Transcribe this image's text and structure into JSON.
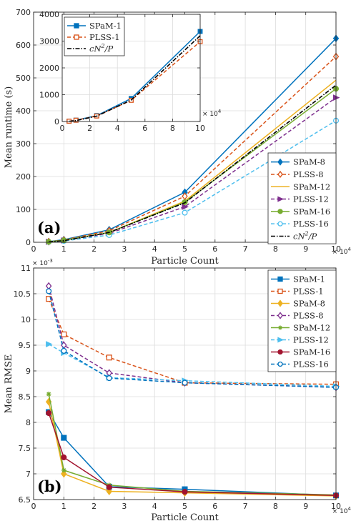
{
  "colors": {
    "blue": "#0072BD",
    "orange": "#D95319",
    "yellow": "#EDB120",
    "purple": "#7E2F8E",
    "green": "#77AC30",
    "cyan": "#4DBEEE",
    "darkred": "#A2142F",
    "black": "#000000",
    "grid": "#dcdcdc"
  },
  "chart_data": [
    {
      "id": "a",
      "type": "line",
      "panel_label": "(a)",
      "xlabel": "Particle Count",
      "ylabel": "Mean runtime (s)",
      "x_exponent": "× 10^4",
      "xlim": [
        0,
        10
      ],
      "ylim": [
        0,
        700
      ],
      "xticks": [
        0,
        1,
        2,
        3,
        4,
        5,
        6,
        7,
        8,
        9,
        10
      ],
      "yticks": [
        0,
        100,
        200,
        300,
        400,
        500,
        600,
        700
      ],
      "grid": true,
      "legend_position": "bottom-right",
      "series": [
        {
          "name": "SPaM-8",
          "color": "blue",
          "dash": "solid",
          "marker": "diamond",
          "x": [
            0.5,
            1,
            2.5,
            5,
            10
          ],
          "y": [
            2,
            8,
            38,
            152,
            620
          ]
        },
        {
          "name": "PLSS-8",
          "color": "orange",
          "dash": "dashed",
          "marker": "diamond-open",
          "x": [
            0.5,
            1,
            2.5,
            5,
            10
          ],
          "y": [
            2,
            7,
            35,
            140,
            565
          ]
        },
        {
          "name": "SPaM-12",
          "color": "yellow",
          "dash": "solid",
          "marker": "none",
          "x": [
            0.5,
            1,
            2.5,
            5,
            10
          ],
          "y": [
            1.5,
            6,
            30,
            125,
            493
          ]
        },
        {
          "name": "PLSS-12",
          "color": "purple",
          "dash": "dashed",
          "marker": "triangle-right",
          "x": [
            0.5,
            1,
            2.5,
            5,
            10
          ],
          "y": [
            1.5,
            5.5,
            27,
            108,
            440
          ]
        },
        {
          "name": "PLSS-16",
          "color": "cyan",
          "dash": "dashed",
          "marker": "circle-open",
          "x": [
            0.5,
            1,
            2.5,
            5,
            10
          ],
          "y": [
            1,
            4,
            22,
            90,
            370
          ]
        },
        {
          "name": "SPaM-16",
          "color": "green",
          "dash": "solid",
          "marker": "circle",
          "x": [
            0.5,
            1,
            2.5,
            5,
            10
          ],
          "y": [
            1.5,
            6,
            30,
            122,
            467
          ]
        },
        {
          "name": "cN^2/P",
          "color": "black",
          "dash": "dashdot",
          "marker": "none",
          "x": [
            0.5,
            1,
            2.5,
            5,
            10
          ],
          "y": [
            1.2,
            4.8,
            30,
            120,
            478
          ]
        }
      ],
      "legend_order": [
        "SPaM-8",
        "PLSS-8",
        "SPaM-12",
        "PLSS-12",
        "SPaM-16",
        "PLSS-16",
        "cN^2/P"
      ],
      "inset": {
        "xlim": [
          0,
          10
        ],
        "ylim": [
          0,
          4000
        ],
        "xticks": [
          0,
          2,
          4,
          6,
          8,
          10
        ],
        "yticks": [
          0,
          1000,
          2000,
          3000,
          4000
        ],
        "x_exponent": "× 10^4",
        "grid": true,
        "legend_position": "top-left",
        "series": [
          {
            "name": "SPaM-1",
            "color": "blue",
            "dash": "solid",
            "marker": "square",
            "x": [
              0.5,
              1,
              2.5,
              5,
              10
            ],
            "y": [
              12,
              50,
              220,
              860,
              3360
            ]
          },
          {
            "name": "PLSS-1",
            "color": "orange",
            "dash": "dashed",
            "marker": "square-open",
            "x": [
              0.5,
              1,
              2.5,
              5,
              10
            ],
            "y": [
              12,
              48,
              205,
              790,
              2980
            ]
          },
          {
            "name": "cN^2/P",
            "color": "black",
            "dash": "dashdot",
            "marker": "none",
            "x": [
              0.5,
              1,
              2.5,
              5,
              10
            ],
            "y": [
              8,
              32,
              200,
              800,
              3200
            ]
          }
        ]
      }
    },
    {
      "id": "b",
      "type": "line",
      "panel_label": "(b)",
      "xlabel": "Particle Count",
      "ylabel": "Mean RMSE",
      "x_exponent": "× 10^4",
      "y_exponent": "× 10^-3",
      "xlim": [
        0,
        10
      ],
      "ylim": [
        6.5,
        11
      ],
      "xticks": [
        0,
        1,
        2,
        3,
        4,
        5,
        6,
        7,
        8,
        9,
        10
      ],
      "yticks": [
        6.5,
        7,
        7.5,
        8,
        8.5,
        9,
        9.5,
        10,
        10.5,
        11
      ],
      "grid": true,
      "legend_position": "top-right",
      "series": [
        {
          "name": "SPaM-1",
          "color": "blue",
          "dash": "solid",
          "marker": "square",
          "x": [
            0.5,
            1,
            2.5,
            5,
            10
          ],
          "y": [
            8.2,
            7.7,
            6.75,
            6.7,
            6.58
          ]
        },
        {
          "name": "PLSS-1",
          "color": "orange",
          "dash": "dashed",
          "marker": "square-open",
          "x": [
            0.5,
            1,
            2.5,
            5,
            10
          ],
          "y": [
            10.4,
            9.71,
            9.26,
            8.77,
            8.74
          ]
        },
        {
          "name": "SPaM-8",
          "color": "yellow",
          "dash": "solid",
          "marker": "diamond",
          "x": [
            0.5,
            1,
            2.5,
            5,
            10
          ],
          "y": [
            8.4,
            7.0,
            6.66,
            6.63,
            6.57
          ]
        },
        {
          "name": "PLSS-8",
          "color": "purple",
          "dash": "dashed",
          "marker": "diamond-open",
          "x": [
            0.5,
            1,
            2.5,
            5,
            10
          ],
          "y": [
            10.65,
            9.5,
            8.96,
            8.77,
            8.68
          ]
        },
        {
          "name": "SPaM-12",
          "color": "green",
          "dash": "solid",
          "marker": "star",
          "x": [
            0.5,
            1,
            2.5,
            5,
            10
          ],
          "y": [
            8.55,
            7.07,
            6.78,
            6.66,
            6.59
          ]
        },
        {
          "name": "PLSS-12",
          "color": "cyan",
          "dash": "dashed",
          "marker": "triangle-right",
          "x": [
            0.5,
            1,
            2.5,
            5,
            10
          ],
          "y": [
            9.52,
            9.35,
            8.87,
            8.81,
            8.7
          ]
        },
        {
          "name": "SPaM-16",
          "color": "darkred",
          "dash": "solid",
          "marker": "circle",
          "x": [
            0.5,
            1,
            2.5,
            5,
            10
          ],
          "y": [
            8.18,
            7.32,
            6.74,
            6.65,
            6.58
          ]
        },
        {
          "name": "PLSS-16",
          "color": "blue",
          "dash": "dashed",
          "marker": "circle-open",
          "x": [
            0.5,
            1,
            2.5,
            5,
            10
          ],
          "y": [
            10.55,
            9.39,
            8.86,
            8.77,
            8.68
          ]
        }
      ],
      "legend_order": [
        "SPaM-1",
        "PLSS-1",
        "SPaM-8",
        "PLSS-8",
        "SPaM-12",
        "PLSS-12",
        "SPaM-16",
        "PLSS-16"
      ]
    }
  ]
}
